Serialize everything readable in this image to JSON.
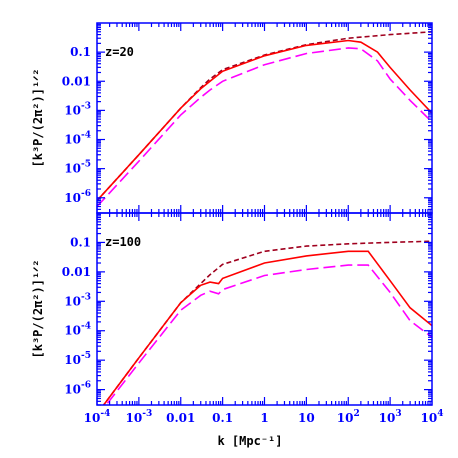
{
  "chart_data": {
    "type": "line",
    "xlabel": "k [Mpc⁻¹]",
    "xscale": "log",
    "xlim": [
      0.0001,
      10000
    ],
    "x_ticks": [
      {
        "value": 0.0001,
        "base": "10",
        "exp": "-4"
      },
      {
        "value": 0.001,
        "base": "10",
        "exp": "-3"
      },
      {
        "value": 0.01,
        "base": "0.01",
        "exp": ""
      },
      {
        "value": 0.1,
        "base": "0.1",
        "exp": ""
      },
      {
        "value": 1,
        "base": "1",
        "exp": ""
      },
      {
        "value": 10,
        "base": "10",
        "exp": ""
      },
      {
        "value": 100,
        "base": "10",
        "exp": "2"
      },
      {
        "value": 1000,
        "base": "10",
        "exp": "3"
      },
      {
        "value": 10000,
        "base": "10",
        "exp": "4"
      }
    ],
    "colors": {
      "frame": "#0000ff",
      "solid": "#ff0000",
      "short_dash": "#a0001e",
      "long_dash": "#ff00ff"
    },
    "panels": [
      {
        "label": "z=20",
        "ylabel": "[k³P/(2π²)]¹ᐟ²",
        "yscale": "log",
        "ylim": [
          3e-07,
          1.0
        ],
        "y_ticks": [
          {
            "value": 0.1,
            "base": "0.1",
            "exp": ""
          },
          {
            "value": 0.01,
            "base": "0.01",
            "exp": ""
          },
          {
            "value": 0.001,
            "base": "10",
            "exp": "-3"
          },
          {
            "value": 0.0001,
            "base": "10",
            "exp": "-4"
          },
          {
            "value": 1e-05,
            "base": "10",
            "exp": "-5"
          },
          {
            "value": 1e-06,
            "base": "10",
            "exp": "-6"
          }
        ],
        "series": [
          {
            "style": "short-dash",
            "color": "#a0001e",
            "x": [
              0.0001,
              0.001,
              0.01,
              0.03,
              0.05,
              0.1,
              1,
              10,
              100,
              1000,
              10000
            ],
            "y": [
              8e-07,
              3e-05,
              0.0012,
              0.006,
              0.012,
              0.025,
              0.08,
              0.18,
              0.3,
              0.4,
              0.5
            ]
          },
          {
            "style": "solid",
            "color": "#ff0000",
            "x": [
              0.0001,
              0.001,
              0.01,
              0.03,
              0.05,
              0.1,
              1,
              10,
              100,
              200,
              500,
              1000,
              3000,
              10000
            ],
            "y": [
              8e-07,
              3e-05,
              0.0012,
              0.0055,
              0.01,
              0.022,
              0.075,
              0.17,
              0.25,
              0.22,
              0.1,
              0.03,
              0.005,
              0.0008
            ]
          },
          {
            "style": "long-dash",
            "color": "#ff00ff",
            "x": [
              0.0001,
              0.001,
              0.01,
              0.03,
              0.05,
              0.1,
              1,
              10,
              100,
              200,
              500,
              1000,
              3000,
              10000
            ],
            "y": [
              5e-07,
              1.8e-05,
              0.0007,
              0.0028,
              0.005,
              0.01,
              0.037,
              0.09,
              0.14,
              0.13,
              0.05,
              0.012,
              0.0022,
              0.0004
            ]
          }
        ]
      },
      {
        "label": "z=100",
        "ylabel": "[k³P/(2π²)]¹ᐟ²",
        "yscale": "log",
        "ylim": [
          3e-07,
          1.0
        ],
        "y_ticks": [
          {
            "value": 0.1,
            "base": "0.1",
            "exp": ""
          },
          {
            "value": 0.01,
            "base": "0.01",
            "exp": ""
          },
          {
            "value": 0.001,
            "base": "10",
            "exp": "-3"
          },
          {
            "value": 0.0001,
            "base": "10",
            "exp": "-4"
          },
          {
            "value": 1e-05,
            "base": "10",
            "exp": "-5"
          },
          {
            "value": 1e-06,
            "base": "10",
            "exp": "-6"
          }
        ],
        "series": [
          {
            "style": "short-dash",
            "color": "#a0001e",
            "x": [
              0.0001,
              0.001,
              0.01,
              0.03,
              0.05,
              0.1,
              1,
              10,
              100,
              1000,
              10000
            ],
            "y": [
              1.5e-07,
              1.2e-05,
              0.0009,
              0.004,
              0.008,
              0.018,
              0.05,
              0.075,
              0.09,
              0.1,
              0.11
            ]
          },
          {
            "style": "solid",
            "color": "#ff0000",
            "x": [
              0.0001,
              0.001,
              0.01,
              0.03,
              0.05,
              0.08,
              0.1,
              1,
              10,
              100,
              300,
              1000,
              3000,
              10000
            ],
            "y": [
              1.5e-07,
              1.2e-05,
              0.0009,
              0.0035,
              0.0045,
              0.004,
              0.006,
              0.02,
              0.035,
              0.05,
              0.05,
              0.005,
              0.0006,
              0.00015
            ]
          },
          {
            "style": "long-dash",
            "color": "#ff00ff",
            "x": [
              0.0001,
              0.001,
              0.01,
              0.03,
              0.05,
              0.08,
              0.1,
              1,
              10,
              100,
              300,
              1000,
              3000,
              10000
            ],
            "y": [
              1.2e-07,
              8e-06,
              0.0005,
              0.0016,
              0.0022,
              0.0018,
              0.0025,
              0.0075,
              0.012,
              0.017,
              0.017,
              0.002,
              0.00022,
              6e-05
            ]
          }
        ]
      }
    ]
  }
}
